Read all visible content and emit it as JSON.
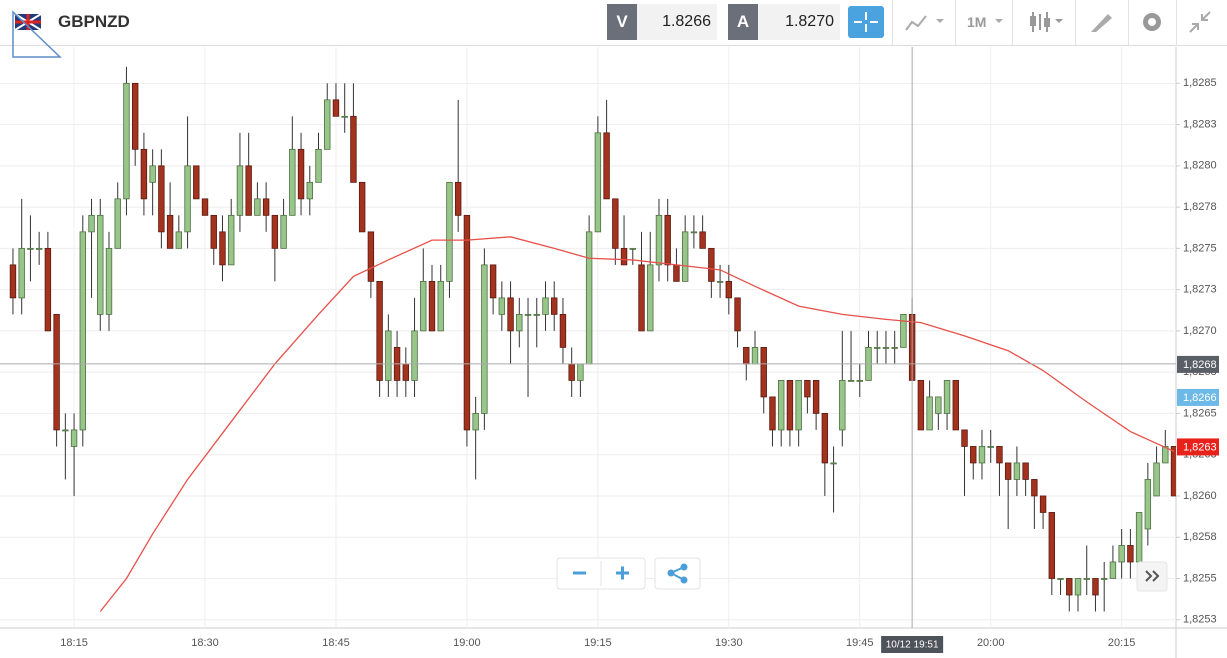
{
  "header": {
    "symbol": "GBPNZD",
    "sell_label": "V",
    "sell_price": "1.8266",
    "buy_label": "A",
    "buy_price": "1.8270",
    "timeframe": "1M"
  },
  "chart_data": {
    "type": "candlestick",
    "categories": [
      "18:08",
      "18:09",
      "18:10",
      "18:11",
      "18:12",
      "18:13",
      "18:14",
      "18:15",
      "18:16",
      "18:17",
      "18:18",
      "18:19",
      "18:20",
      "18:21",
      "18:22",
      "18:23",
      "18:24",
      "18:25",
      "18:26",
      "18:27",
      "18:28",
      "18:29",
      "18:30",
      "18:31",
      "18:32",
      "18:33",
      "18:34",
      "18:35",
      "18:36",
      "18:37",
      "18:38",
      "18:39",
      "18:40",
      "18:41",
      "18:42",
      "18:43",
      "18:44",
      "18:45",
      "18:46",
      "18:47",
      "18:48",
      "18:49",
      "18:50",
      "18:51",
      "18:52",
      "18:53",
      "18:54",
      "18:55",
      "18:56",
      "18:57",
      "18:58",
      "18:59",
      "19:00",
      "19:01",
      "19:02",
      "19:03",
      "19:04",
      "19:05",
      "19:06",
      "19:07",
      "19:08",
      "19:09",
      "19:10",
      "19:11",
      "19:12",
      "19:13",
      "19:14",
      "19:15",
      "19:16",
      "19:17",
      "19:18",
      "19:19",
      "19:20",
      "19:21",
      "19:22",
      "19:23",
      "19:24",
      "19:25",
      "19:26",
      "19:27",
      "19:28",
      "19:29",
      "19:30",
      "19:31",
      "19:32",
      "19:33",
      "19:34",
      "19:35",
      "19:36",
      "19:37",
      "19:38",
      "19:39",
      "19:40",
      "19:41",
      "19:42",
      "19:43",
      "19:44",
      "19:45",
      "19:46",
      "19:47",
      "19:48",
      "19:49",
      "19:50",
      "19:51",
      "19:52",
      "19:53",
      "19:54",
      "19:55",
      "19:56",
      "19:57",
      "19:58",
      "19:59",
      "20:00",
      "20:01",
      "20:02",
      "20:03",
      "20:04",
      "20:05",
      "20:06",
      "20:07",
      "20:08",
      "20:09",
      "20:10",
      "20:11",
      "20:12",
      "20:13",
      "20:14",
      "20:15",
      "20:16",
      "20:17",
      "20:18",
      "20:19",
      "20:20",
      "20:21"
    ],
    "open": [
      1.8274,
      1.8272,
      1.8275,
      1.8275,
      1.8275,
      1.8271,
      1.8264,
      1.8263,
      1.8264,
      1.8276,
      1.8271,
      1.8271,
      1.8275,
      1.8278,
      1.8285,
      1.8281,
      1.8279,
      1.828,
      1.8277,
      1.8275,
      1.8276,
      1.828,
      1.8278,
      1.8277,
      1.8276,
      1.8274,
      1.8277,
      1.828,
      1.8277,
      1.8278,
      1.8277,
      1.8275,
      1.8277,
      1.8281,
      1.8278,
      1.8279,
      1.8281,
      1.8284,
      1.8283,
      1.8283,
      1.8279,
      1.8276,
      1.8273,
      1.8267,
      1.8269,
      1.8268,
      1.8267,
      1.827,
      1.8273,
      1.827,
      1.8273,
      1.8279,
      1.8277,
      1.8264,
      1.8265,
      1.8274,
      1.8271,
      1.8272,
      1.827,
      1.8271,
      1.8271,
      1.8271,
      1.8272,
      1.8271,
      1.8268,
      1.8267,
      1.8268,
      1.8276,
      1.8282,
      1.8278,
      1.8275,
      1.8275,
      1.8274,
      1.827,
      1.8274,
      1.8277,
      1.8274,
      1.8273,
      1.8276,
      1.8276,
      1.8275,
      1.8273,
      1.8273,
      1.8272,
      1.8269,
      1.8268,
      1.8269,
      1.8266,
      1.8264,
      1.8267,
      1.8264,
      1.8267,
      1.8267,
      1.8265,
      1.8262,
      1.8264,
      1.8267,
      1.8267,
      1.8267,
      1.8269,
      1.8269,
      1.8269,
      1.8269,
      1.8271,
      1.8267,
      1.8264,
      1.8265,
      1.8265,
      1.8267,
      1.8264,
      1.8263,
      1.8262,
      1.8263,
      1.8263,
      1.8262,
      1.8261,
      1.8262,
      1.8261,
      1.826,
      1.8259,
      1.8255,
      1.8255,
      1.8254,
      1.8255,
      1.8255,
      1.8255,
      1.8255,
      1.8256,
      1.8257,
      1.8256,
      1.8258,
      1.826,
      1.8262,
      1.8263
    ],
    "high": [
      1.8275,
      1.8278,
      1.8277,
      1.8276,
      1.8276,
      1.8271,
      1.8265,
      1.8265,
      1.8277,
      1.8278,
      1.8278,
      1.8276,
      1.8279,
      1.8286,
      1.8285,
      1.8282,
      1.8281,
      1.8281,
      1.8279,
      1.8277,
      1.8283,
      1.828,
      1.8278,
      1.8277,
      1.8277,
      1.8278,
      1.8282,
      1.8282,
      1.8279,
      1.8279,
      1.8277,
      1.8278,
      1.8283,
      1.8282,
      1.828,
      1.8282,
      1.8285,
      1.8285,
      1.8285,
      1.8285,
      1.8279,
      1.8276,
      1.8273,
      1.8271,
      1.827,
      1.8269,
      1.8272,
      1.8275,
      1.8274,
      1.8274,
      1.8279,
      1.8284,
      1.8277,
      1.8266,
      1.8275,
      1.8274,
      1.8273,
      1.8273,
      1.8272,
      1.8272,
      1.8272,
      1.8273,
      1.8273,
      1.8272,
      1.8269,
      1.8268,
      1.8277,
      1.8283,
      1.8284,
      1.8278,
      1.8277,
      1.8275,
      1.8276,
      1.8276,
      1.8278,
      1.8278,
      1.8275,
      1.8277,
      1.8277,
      1.8277,
      1.8275,
      1.8274,
      1.8274,
      1.8272,
      1.8269,
      1.827,
      1.8269,
      1.8266,
      1.8267,
      1.8267,
      1.8267,
      1.8267,
      1.8267,
      1.8265,
      1.8263,
      1.827,
      1.827,
      1.8268,
      1.827,
      1.827,
      1.827,
      1.827,
      1.8271,
      1.8272,
      1.8267,
      1.8267,
      1.8266,
      1.8267,
      1.8267,
      1.8264,
      1.8263,
      1.8264,
      1.8264,
      1.8263,
      1.8262,
      1.8263,
      1.8262,
      1.8261,
      1.826,
      1.8259,
      1.8255,
      1.8255,
      1.8255,
      1.8257,
      1.8255,
      1.8256,
      1.8257,
      1.8258,
      1.8258,
      1.8259,
      1.8262,
      1.8263,
      1.8264,
      1.8263
    ],
    "low": [
      1.8271,
      1.8271,
      1.8273,
      1.8274,
      1.827,
      1.8263,
      1.8261,
      1.826,
      1.8263,
      1.8272,
      1.827,
      1.827,
      1.8275,
      1.8277,
      1.828,
      1.8277,
      1.8277,
      1.8275,
      1.8275,
      1.8275,
      1.8275,
      1.8278,
      1.8277,
      1.8274,
      1.8273,
      1.8274,
      1.8276,
      1.8277,
      1.8277,
      1.8276,
      1.8273,
      1.8275,
      1.8277,
      1.8277,
      1.8277,
      1.8279,
      1.8281,
      1.8283,
      1.8282,
      1.8279,
      1.8276,
      1.8272,
      1.8266,
      1.8266,
      1.8266,
      1.8266,
      1.8266,
      1.827,
      1.827,
      1.827,
      1.8272,
      1.8276,
      1.8263,
      1.8261,
      1.8264,
      1.8271,
      1.827,
      1.8268,
      1.8269,
      1.8266,
      1.8269,
      1.827,
      1.827,
      1.8268,
      1.8266,
      1.8266,
      1.8268,
      1.8276,
      1.8278,
      1.8274,
      1.8274,
      1.8274,
      1.827,
      1.827,
      1.8273,
      1.8273,
      1.8273,
      1.8273,
      1.8275,
      1.8275,
      1.8272,
      1.8272,
      1.8271,
      1.8269,
      1.8267,
      1.8268,
      1.8265,
      1.8263,
      1.8263,
      1.8263,
      1.8263,
      1.8265,
      1.8264,
      1.826,
      1.8259,
      1.8263,
      1.8267,
      1.8266,
      1.8267,
      1.8268,
      1.8268,
      1.8268,
      1.8269,
      1.8267,
      1.8264,
      1.8264,
      1.8264,
      1.8264,
      1.8264,
      1.826,
      1.8261,
      1.8261,
      1.8262,
      1.826,
      1.8258,
      1.826,
      1.826,
      1.8258,
      1.8258,
      1.8254,
      1.8254,
      1.8253,
      1.8253,
      1.8254,
      1.8253,
      1.8253,
      1.8255,
      1.8255,
      1.8255,
      1.8255,
      1.8257,
      1.826,
      1.8262,
      1.826
    ],
    "close": [
      1.8272,
      1.8275,
      1.8275,
      1.8275,
      1.827,
      1.8264,
      1.8264,
      1.8264,
      1.8276,
      1.8277,
      1.8277,
      1.8275,
      1.8278,
      1.8285,
      1.8281,
      1.8278,
      1.828,
      1.8276,
      1.8275,
      1.8276,
      1.828,
      1.8278,
      1.8277,
      1.8275,
      1.8274,
      1.8277,
      1.828,
      1.8277,
      1.8278,
      1.8277,
      1.8275,
      1.8277,
      1.8281,
      1.8278,
      1.8279,
      1.8281,
      1.8284,
      1.8283,
      1.8283,
      1.8279,
      1.8276,
      1.8273,
      1.8267,
      1.827,
      1.8267,
      1.8267,
      1.827,
      1.8273,
      1.827,
      1.8273,
      1.8279,
      1.8277,
      1.8264,
      1.8265,
      1.8274,
      1.8272,
      1.8272,
      1.827,
      1.8271,
      1.8271,
      1.8271,
      1.8272,
      1.8271,
      1.8269,
      1.8267,
      1.8268,
      1.8276,
      1.8282,
      1.8278,
      1.8275,
      1.8274,
      1.8275,
      1.827,
      1.8274,
      1.8277,
      1.8274,
      1.8273,
      1.8276,
      1.8276,
      1.8275,
      1.8273,
      1.8273,
      1.8272,
      1.827,
      1.8268,
      1.8269,
      1.8266,
      1.8264,
      1.8267,
      1.8264,
      1.8267,
      1.8266,
      1.8265,
      1.8262,
      1.8262,
      1.8267,
      1.8267,
      1.8267,
      1.8269,
      1.8269,
      1.8269,
      1.8269,
      1.8271,
      1.8267,
      1.8264,
      1.8266,
      1.8266,
      1.8267,
      1.8264,
      1.8263,
      1.8262,
      1.8263,
      1.8263,
      1.8262,
      1.8261,
      1.8262,
      1.8261,
      1.826,
      1.8259,
      1.8255,
      1.8255,
      1.8254,
      1.8255,
      1.8255,
      1.8254,
      1.8255,
      1.8256,
      1.8257,
      1.8256,
      1.8259,
      1.8261,
      1.8262,
      1.8263,
      1.826
    ],
    "up_color": "#98c68a",
    "down_color": "#a3321f",
    "moving_average": {
      "color": "#e8504a",
      "x": [
        "18:18",
        "18:21",
        "18:24",
        "18:28",
        "18:33",
        "18:38",
        "18:43",
        "18:47",
        "18:51",
        "18:56",
        "19:00",
        "19:05",
        "19:10",
        "19:14",
        "19:19",
        "19:24",
        "19:29",
        "19:33",
        "19:38",
        "19:43",
        "19:48",
        "19:52",
        "19:57",
        "20:02",
        "20:06",
        "20:11",
        "20:16",
        "20:21"
      ],
      "values": [
        1.8253,
        1.8255,
        1.82577,
        1.8261,
        1.82645,
        1.8268,
        1.8271,
        1.82733,
        1.82743,
        1.82755,
        1.82755,
        1.82757,
        1.8275,
        1.82744,
        1.82743,
        1.8274,
        1.82737,
        1.82727,
        1.82715,
        1.8271,
        1.82707,
        1.82705,
        1.82697,
        1.82688,
        1.82676,
        1.82657,
        1.82639,
        1.82627
      ]
    },
    "ylim": [
      1.8252,
      1.82872
    ],
    "yticks": [
      {
        "value": 1.8285,
        "label": "1,8285"
      },
      {
        "value": 1.82825,
        "label": "1,8283"
      },
      {
        "value": 1.828,
        "label": "1,8280"
      },
      {
        "value": 1.82775,
        "label": "1,8278"
      },
      {
        "value": 1.8275,
        "label": "1,8275"
      },
      {
        "value": 1.82725,
        "label": "1,8273"
      },
      {
        "value": 1.827,
        "label": "1,8270"
      },
      {
        "value": 1.82675,
        "label": "1,8268"
      },
      {
        "value": 1.8265,
        "label": "1,8265"
      },
      {
        "value": 1.82625,
        "label": "1,8263"
      },
      {
        "value": 1.826,
        "label": "1,8260"
      },
      {
        "value": 1.82575,
        "label": "1,8258"
      },
      {
        "value": 1.8255,
        "label": "1,8255"
      },
      {
        "value": 1.82525,
        "label": "1,8253"
      }
    ],
    "xticks": [
      "18:15",
      "18:30",
      "18:45",
      "19:00",
      "19:15",
      "19:30",
      "19:45",
      "20:00",
      "20:15"
    ],
    "grid": true,
    "crosshair": {
      "x": "19:51",
      "x_label": "10/12 19:51",
      "y": 1.8268,
      "y_label": "1,8268"
    },
    "price_markers": [
      {
        "value": 1.8266,
        "label": "1,8266",
        "color": "#6cb8e6"
      },
      {
        "value": 1.8263,
        "label": "1,8263",
        "color": "#e8211b"
      }
    ]
  }
}
